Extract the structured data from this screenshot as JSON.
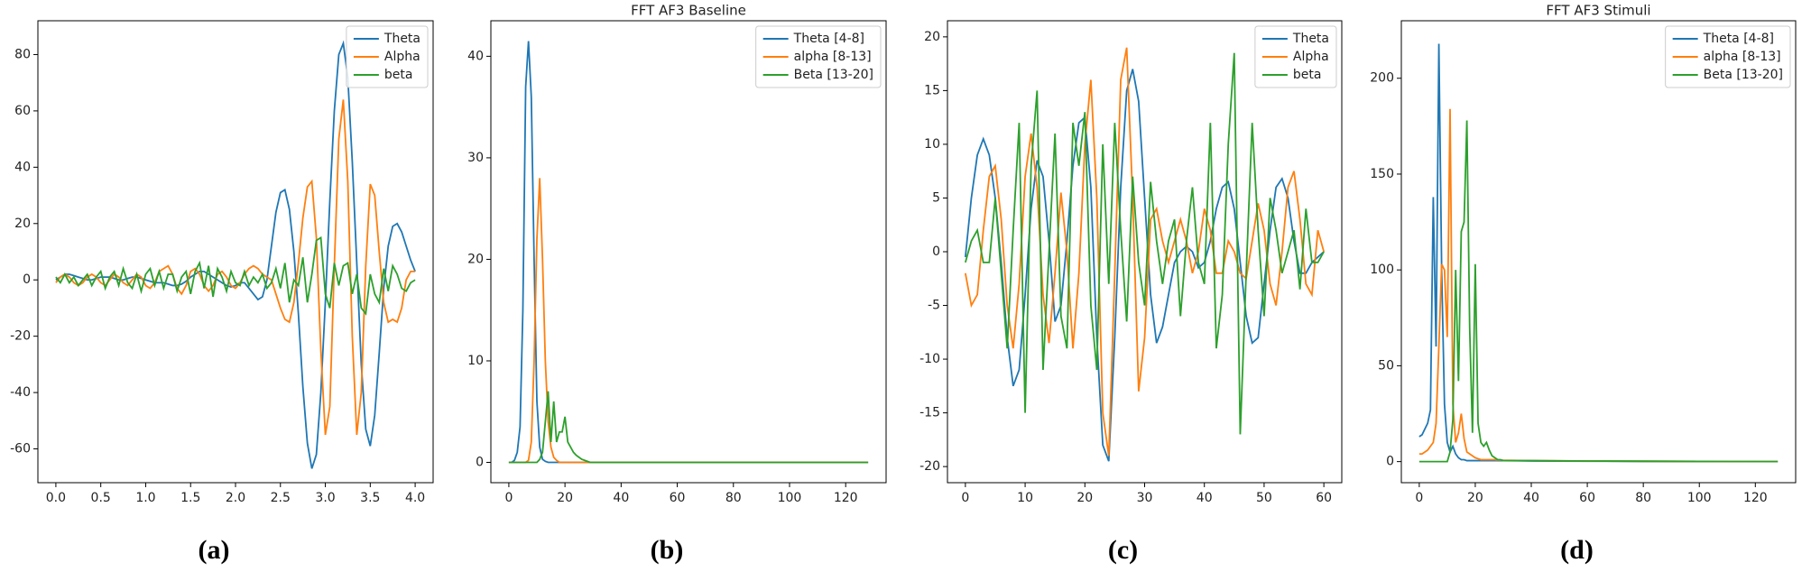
{
  "chart_data": [
    {
      "type": "line",
      "caption": "(a)",
      "legend": "upper right",
      "x": [
        0,
        0.05,
        0.1,
        0.15,
        0.2,
        0.25,
        0.3,
        0.35,
        0.4,
        0.45,
        0.5,
        0.55,
        0.6,
        0.65,
        0.7,
        0.75,
        0.8,
        0.85,
        0.9,
        0.95,
        1.0,
        1.05,
        1.1,
        1.15,
        1.2,
        1.25,
        1.3,
        1.35,
        1.4,
        1.45,
        1.5,
        1.55,
        1.6,
        1.65,
        1.7,
        1.75,
        1.8,
        1.85,
        1.9,
        1.95,
        2.0,
        2.05,
        2.1,
        2.15,
        2.2,
        2.25,
        2.3,
        2.35,
        2.4,
        2.45,
        2.5,
        2.55,
        2.6,
        2.65,
        2.7,
        2.75,
        2.8,
        2.85,
        2.9,
        2.95,
        3.0,
        3.05,
        3.1,
        3.15,
        3.2,
        3.25,
        3.3,
        3.35,
        3.4,
        3.45,
        3.5,
        3.55,
        3.6,
        3.65,
        3.7,
        3.75,
        3.8,
        3.85,
        3.9,
        3.95,
        4.0
      ],
      "series": [
        {
          "name": "Theta",
          "color": "#1f77b4",
          "values": [
            0,
            1,
            2,
            2,
            1.5,
            1,
            0.5,
            0,
            0,
            0.5,
            1,
            1,
            1,
            0.5,
            0,
            0,
            0.5,
            1,
            1,
            0.5,
            0,
            -0.5,
            -1,
            -1,
            -1,
            -1.5,
            -2,
            -2,
            -1.5,
            -0.5,
            1,
            2,
            3,
            3,
            2,
            1,
            0,
            -1,
            -2,
            -2.5,
            -2,
            -1,
            -1,
            -3,
            -5,
            -7,
            -6,
            0,
            12,
            24,
            31,
            32,
            25,
            10,
            -12,
            -38,
            -58,
            -67,
            -62,
            -40,
            -8,
            28,
            60,
            80,
            84,
            72,
            42,
            6,
            -30,
            -53,
            -59,
            -48,
            -26,
            -3,
            12,
            19,
            20,
            17,
            12,
            7,
            3
          ]
        },
        {
          "name": "Alpha",
          "color": "#ff7f0e",
          "values": [
            -1,
            1,
            2,
            1,
            -1,
            -2,
            -1,
            1,
            2,
            1,
            -1,
            -2,
            0,
            2,
            1,
            -1,
            -2,
            0,
            2,
            1,
            -2,
            -3,
            -1,
            3,
            4,
            5,
            2,
            -3,
            -5,
            -2,
            3,
            4,
            2,
            -2,
            -4,
            -2,
            2,
            3,
            1,
            -2,
            -3,
            -1,
            2,
            4,
            5,
            4,
            2,
            1,
            0,
            -5,
            -10,
            -14,
            -15,
            -8,
            6,
            22,
            33,
            35,
            15,
            -25,
            -55,
            -45,
            5,
            50,
            64,
            35,
            -20,
            -55,
            -40,
            5,
            34,
            30,
            10,
            -8,
            -15,
            -14,
            -15,
            -10,
            0,
            3,
            3
          ]
        },
        {
          "name": "beta",
          "color": "#2ca02c",
          "values": [
            1,
            -1,
            2,
            -1,
            1,
            -2,
            0,
            2,
            -2,
            1,
            3,
            -3,
            1,
            3,
            -2,
            4,
            -1,
            -3,
            2,
            -4,
            2,
            4,
            -2,
            3,
            -3,
            2,
            2,
            -4,
            1,
            3,
            -5,
            3,
            6,
            -3,
            5,
            -6,
            4,
            1,
            -4,
            3,
            -1,
            -2,
            3,
            -2,
            1,
            -1,
            2,
            -3,
            -1,
            4,
            -3,
            6,
            -8,
            0,
            -2,
            8,
            -8,
            2,
            14,
            15,
            -5,
            -10,
            6,
            -2,
            5,
            6,
            -5,
            2,
            -10,
            -12,
            2,
            -5,
            -8,
            4,
            -4,
            5,
            2,
            -3,
            -4,
            -1,
            0
          ]
        }
      ],
      "xlim": [
        -0.2,
        4.2
      ],
      "ylim": [
        -72,
        92
      ],
      "xticks": [
        {
          "value": 0,
          "label": "0.0"
        },
        0.5,
        {
          "value": 1,
          "label": "1.0"
        },
        1.5,
        {
          "value": 2,
          "label": "2.0"
        },
        2.5,
        {
          "value": 3,
          "label": "3.0"
        },
        3.5,
        {
          "value": 4,
          "label": "4.0"
        }
      ],
      "yticks": [
        -60,
        -40,
        -20,
        0,
        20,
        40,
        60,
        80
      ]
    },
    {
      "type": "line",
      "title": "FFT AF3 Baseline",
      "caption": "(b)",
      "legend": "upper right",
      "x": [
        0,
        1,
        2,
        3,
        4,
        5,
        6,
        7,
        8,
        9,
        10,
        11,
        12,
        13,
        14,
        15,
        16,
        17,
        18,
        19,
        20,
        21,
        22,
        23,
        24,
        25,
        26,
        27,
        28,
        29,
        30,
        35,
        40,
        60,
        80,
        100,
        128
      ],
      "series": [
        {
          "name": "Theta [4-8]",
          "color": "#1f77b4",
          "values": [
            0,
            0,
            0.2,
            1,
            3.5,
            15,
            37,
            41.5,
            36,
            20,
            6,
            1.5,
            0.3,
            0.1,
            0,
            0,
            0,
            0,
            0,
            0,
            0,
            0,
            0,
            0,
            0,
            0,
            0,
            0,
            0,
            0,
            0,
            0,
            0,
            0,
            0,
            0,
            0
          ]
        },
        {
          "name": "alpha [8-13]",
          "color": "#ff7f0e",
          "values": [
            0,
            0,
            0,
            0,
            0,
            0,
            0,
            0.2,
            2,
            10,
            22,
            28,
            20,
            10,
            4,
            1.5,
            0.5,
            0.2,
            0,
            0,
            0,
            0,
            0,
            0,
            0,
            0,
            0,
            0,
            0,
            0,
            0,
            0,
            0,
            0,
            0,
            0,
            0
          ]
        },
        {
          "name": "Beta [13-20]",
          "color": "#2ca02c",
          "values": [
            0,
            0,
            0,
            0,
            0,
            0,
            0,
            0,
            0,
            0,
            0,
            0.3,
            1,
            4,
            7,
            2,
            6,
            2,
            3,
            3,
            4.5,
            2,
            1.5,
            1,
            0.7,
            0.5,
            0.3,
            0.2,
            0.1,
            0,
            0,
            0,
            0,
            0,
            0,
            0,
            0
          ]
        }
      ],
      "xlim": [
        -6.4,
        134.4
      ],
      "ylim": [
        -2,
        43.5
      ],
      "xticks": [
        0,
        20,
        40,
        60,
        80,
        100,
        120
      ],
      "yticks": [
        0,
        10,
        20,
        30,
        40
      ]
    },
    {
      "type": "line",
      "caption": "(c)",
      "legend": "upper right",
      "x": [
        0,
        1,
        2,
        3,
        4,
        5,
        6,
        7,
        8,
        9,
        10,
        11,
        12,
        13,
        14,
        15,
        16,
        17,
        18,
        19,
        20,
        21,
        22,
        23,
        24,
        25,
        26,
        27,
        28,
        29,
        30,
        31,
        32,
        33,
        34,
        35,
        36,
        37,
        38,
        39,
        40,
        41,
        42,
        43,
        44,
        45,
        46,
        47,
        48,
        49,
        50,
        51,
        52,
        53,
        54,
        55,
        56,
        57,
        58,
        59,
        60
      ],
      "series": [
        {
          "name": "Theta",
          "color": "#1f77b4",
          "values": [
            -0.5,
            5,
            9,
            10.5,
            9,
            5,
            -1,
            -8,
            -12.5,
            -11,
            -4,
            4,
            8.5,
            7,
            1,
            -6.5,
            -5,
            1,
            8,
            12,
            12.5,
            6,
            -8,
            -18,
            -19.5,
            -8,
            6,
            15,
            17,
            14,
            5,
            -4,
            -8.5,
            -7,
            -4,
            -1,
            0,
            0.5,
            0,
            -1.5,
            -1,
            1,
            4,
            6,
            6.5,
            4,
            -1,
            -6,
            -8.5,
            -8,
            -3,
            2,
            6,
            6.8,
            5,
            1,
            -2,
            -2,
            -1,
            -0.5,
            0
          ]
        },
        {
          "name": "Alpha",
          "color": "#ff7f0e",
          "values": [
            -2,
            -5,
            -4,
            2,
            7,
            8,
            3,
            -5,
            -9,
            -3,
            7,
            11,
            6,
            -4,
            -8.5,
            -2,
            5.5,
            0,
            -9,
            -2,
            10,
            16,
            5,
            -15,
            -19,
            -2,
            16,
            19,
            5,
            -13,
            -8,
            3,
            4,
            1,
            -1,
            1,
            3,
            1,
            -2,
            0,
            4,
            2,
            -2,
            -2,
            1,
            0,
            -2,
            -2.5,
            1,
            4.5,
            2,
            -3,
            -5,
            0,
            6,
            7.5,
            3,
            -3,
            -4,
            2,
            0
          ]
        },
        {
          "name": "beta",
          "color": "#2ca02c",
          "values": [
            -1,
            1,
            2,
            -1,
            -1,
            5,
            -2,
            -9,
            2,
            12,
            -15,
            8,
            15,
            -11,
            0,
            11,
            -6,
            -9,
            12,
            8,
            13,
            -5,
            -11,
            10,
            -3,
            12,
            2,
            -6.5,
            7,
            -1,
            -5,
            6.5,
            1,
            -3,
            1,
            3,
            -6,
            1,
            6,
            -1,
            -3,
            12,
            -9,
            -4,
            10,
            18.5,
            -17,
            -2,
            12,
            2,
            -6,
            5,
            2,
            -2,
            0,
            2,
            -3.5,
            4,
            -1,
            -1,
            0
          ]
        }
      ],
      "xlim": [
        -3,
        63
      ],
      "ylim": [
        -21.5,
        21.5
      ],
      "xticks": [
        0,
        10,
        20,
        30,
        40,
        50,
        60
      ],
      "yticks": [
        -20,
        -15,
        -10,
        -5,
        0,
        5,
        10,
        15,
        20
      ]
    },
    {
      "type": "line",
      "title": "FFT AF3 Stimuli",
      "caption": "(d)",
      "legend": "upper right",
      "x": [
        0,
        1,
        2,
        3,
        4,
        5,
        6,
        7,
        8,
        9,
        10,
        11,
        12,
        13,
        14,
        15,
        16,
        17,
        18,
        19,
        20,
        21,
        22,
        23,
        24,
        25,
        26,
        27,
        28,
        29,
        30,
        35,
        40,
        60,
        80,
        100,
        128
      ],
      "series": [
        {
          "name": "Theta [4-8]",
          "color": "#1f77b4",
          "values": [
            13,
            14,
            17,
            20,
            27,
            138,
            60,
            218,
            100,
            30,
            10,
            5,
            8,
            4,
            2,
            1,
            1,
            0.5,
            0.5,
            0.5,
            0.5,
            0.5,
            0.5,
            0.5,
            0.5,
            0.5,
            0.5,
            0.5,
            0.5,
            0.5,
            0.5,
            0.4,
            0.3,
            0.2,
            0.1,
            0,
            0
          ]
        },
        {
          "name": "alpha [8-13]",
          "color": "#ff7f0e",
          "values": [
            4,
            4,
            5,
            6,
            8,
            10,
            20,
            60,
            103,
            100,
            65,
            184,
            30,
            10,
            15,
            25,
            12,
            5,
            4,
            3,
            2,
            1.5,
            1,
            1,
            1,
            1,
            1,
            1,
            0.8,
            0.8,
            0.7,
            0.6,
            0.5,
            0.3,
            0.2,
            0.1,
            0
          ]
        },
        {
          "name": "Beta [13-20]",
          "color": "#2ca02c",
          "values": [
            0,
            0,
            0,
            0,
            0,
            0,
            0,
            0,
            0,
            0,
            0,
            5,
            22,
            100,
            42,
            120,
            125,
            178,
            70,
            15,
            103,
            20,
            10,
            8,
            10,
            6,
            3,
            2,
            1,
            1,
            0.5,
            0.5,
            0.5,
            0.3,
            0.2,
            0.1,
            0
          ]
        }
      ],
      "xlim": [
        -6.4,
        134.4
      ],
      "ylim": [
        -11,
        230
      ],
      "xticks": [
        0,
        20,
        40,
        60,
        80,
        100,
        120
      ],
      "yticks": [
        0,
        50,
        100,
        150,
        200
      ]
    }
  ]
}
